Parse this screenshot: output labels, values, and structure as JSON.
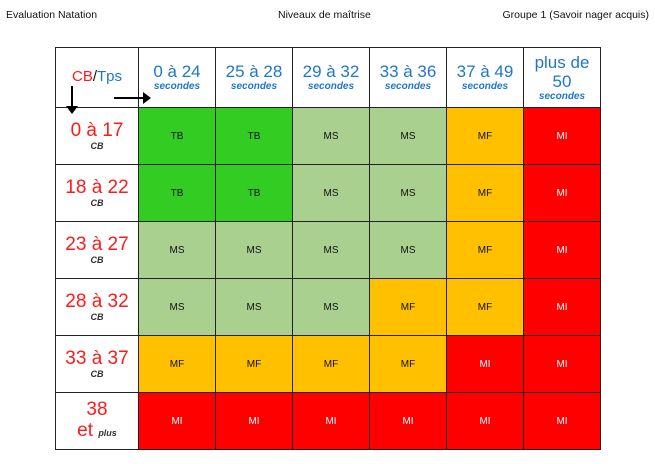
{
  "header": {
    "left": "Evaluation Natation",
    "center": "Niveaux de maîtrise",
    "right": "Groupe 1 (Savoir nager acquis)"
  },
  "table": {
    "corner": {
      "cb": "CB",
      "slash": "/",
      "tps": "Tps"
    },
    "columns": [
      {
        "range": "0 à 24",
        "unit": "secondes"
      },
      {
        "range": "25 à 28",
        "unit": "secondes"
      },
      {
        "range": "29 à 32",
        "unit": "secondes"
      },
      {
        "range": "33 à 36",
        "unit": "secondes"
      },
      {
        "range": "37 à 49",
        "unit": "secondes"
      },
      {
        "range": "plus de 50",
        "unit": "secondes"
      }
    ],
    "rows": [
      {
        "range": "0 à 17",
        "unit": "CB",
        "cells": [
          "TB",
          "TB",
          "MS",
          "MS",
          "MF",
          "MI"
        ]
      },
      {
        "range": "18 à 22",
        "unit": "CB",
        "cells": [
          "TB",
          "TB",
          "MS",
          "MS",
          "MF",
          "MI"
        ]
      },
      {
        "range": "23 à 27",
        "unit": "CB",
        "cells": [
          "MS",
          "MS",
          "MS",
          "MS",
          "MF",
          "MI"
        ]
      },
      {
        "range": "28 à 32",
        "unit": "CB",
        "cells": [
          "MS",
          "MS",
          "MS",
          "MF",
          "MF",
          "MI"
        ]
      },
      {
        "range": "33 à 37",
        "unit": "CB",
        "cells": [
          "MF",
          "MF",
          "MF",
          "MF",
          "MI",
          "MI"
        ]
      },
      {
        "range": "38",
        "unit_prefix": "et",
        "unit": "plus",
        "cells": [
          "MI",
          "MI",
          "MI",
          "MI",
          "MI",
          "MI"
        ]
      }
    ]
  },
  "colors": {
    "TB": "#33cc22",
    "MS": "#a9d08e",
    "MF": "#ffc000",
    "MI": "#ff0000",
    "header_blue": "#1f77c9",
    "row_red": "#ff1a1a"
  }
}
